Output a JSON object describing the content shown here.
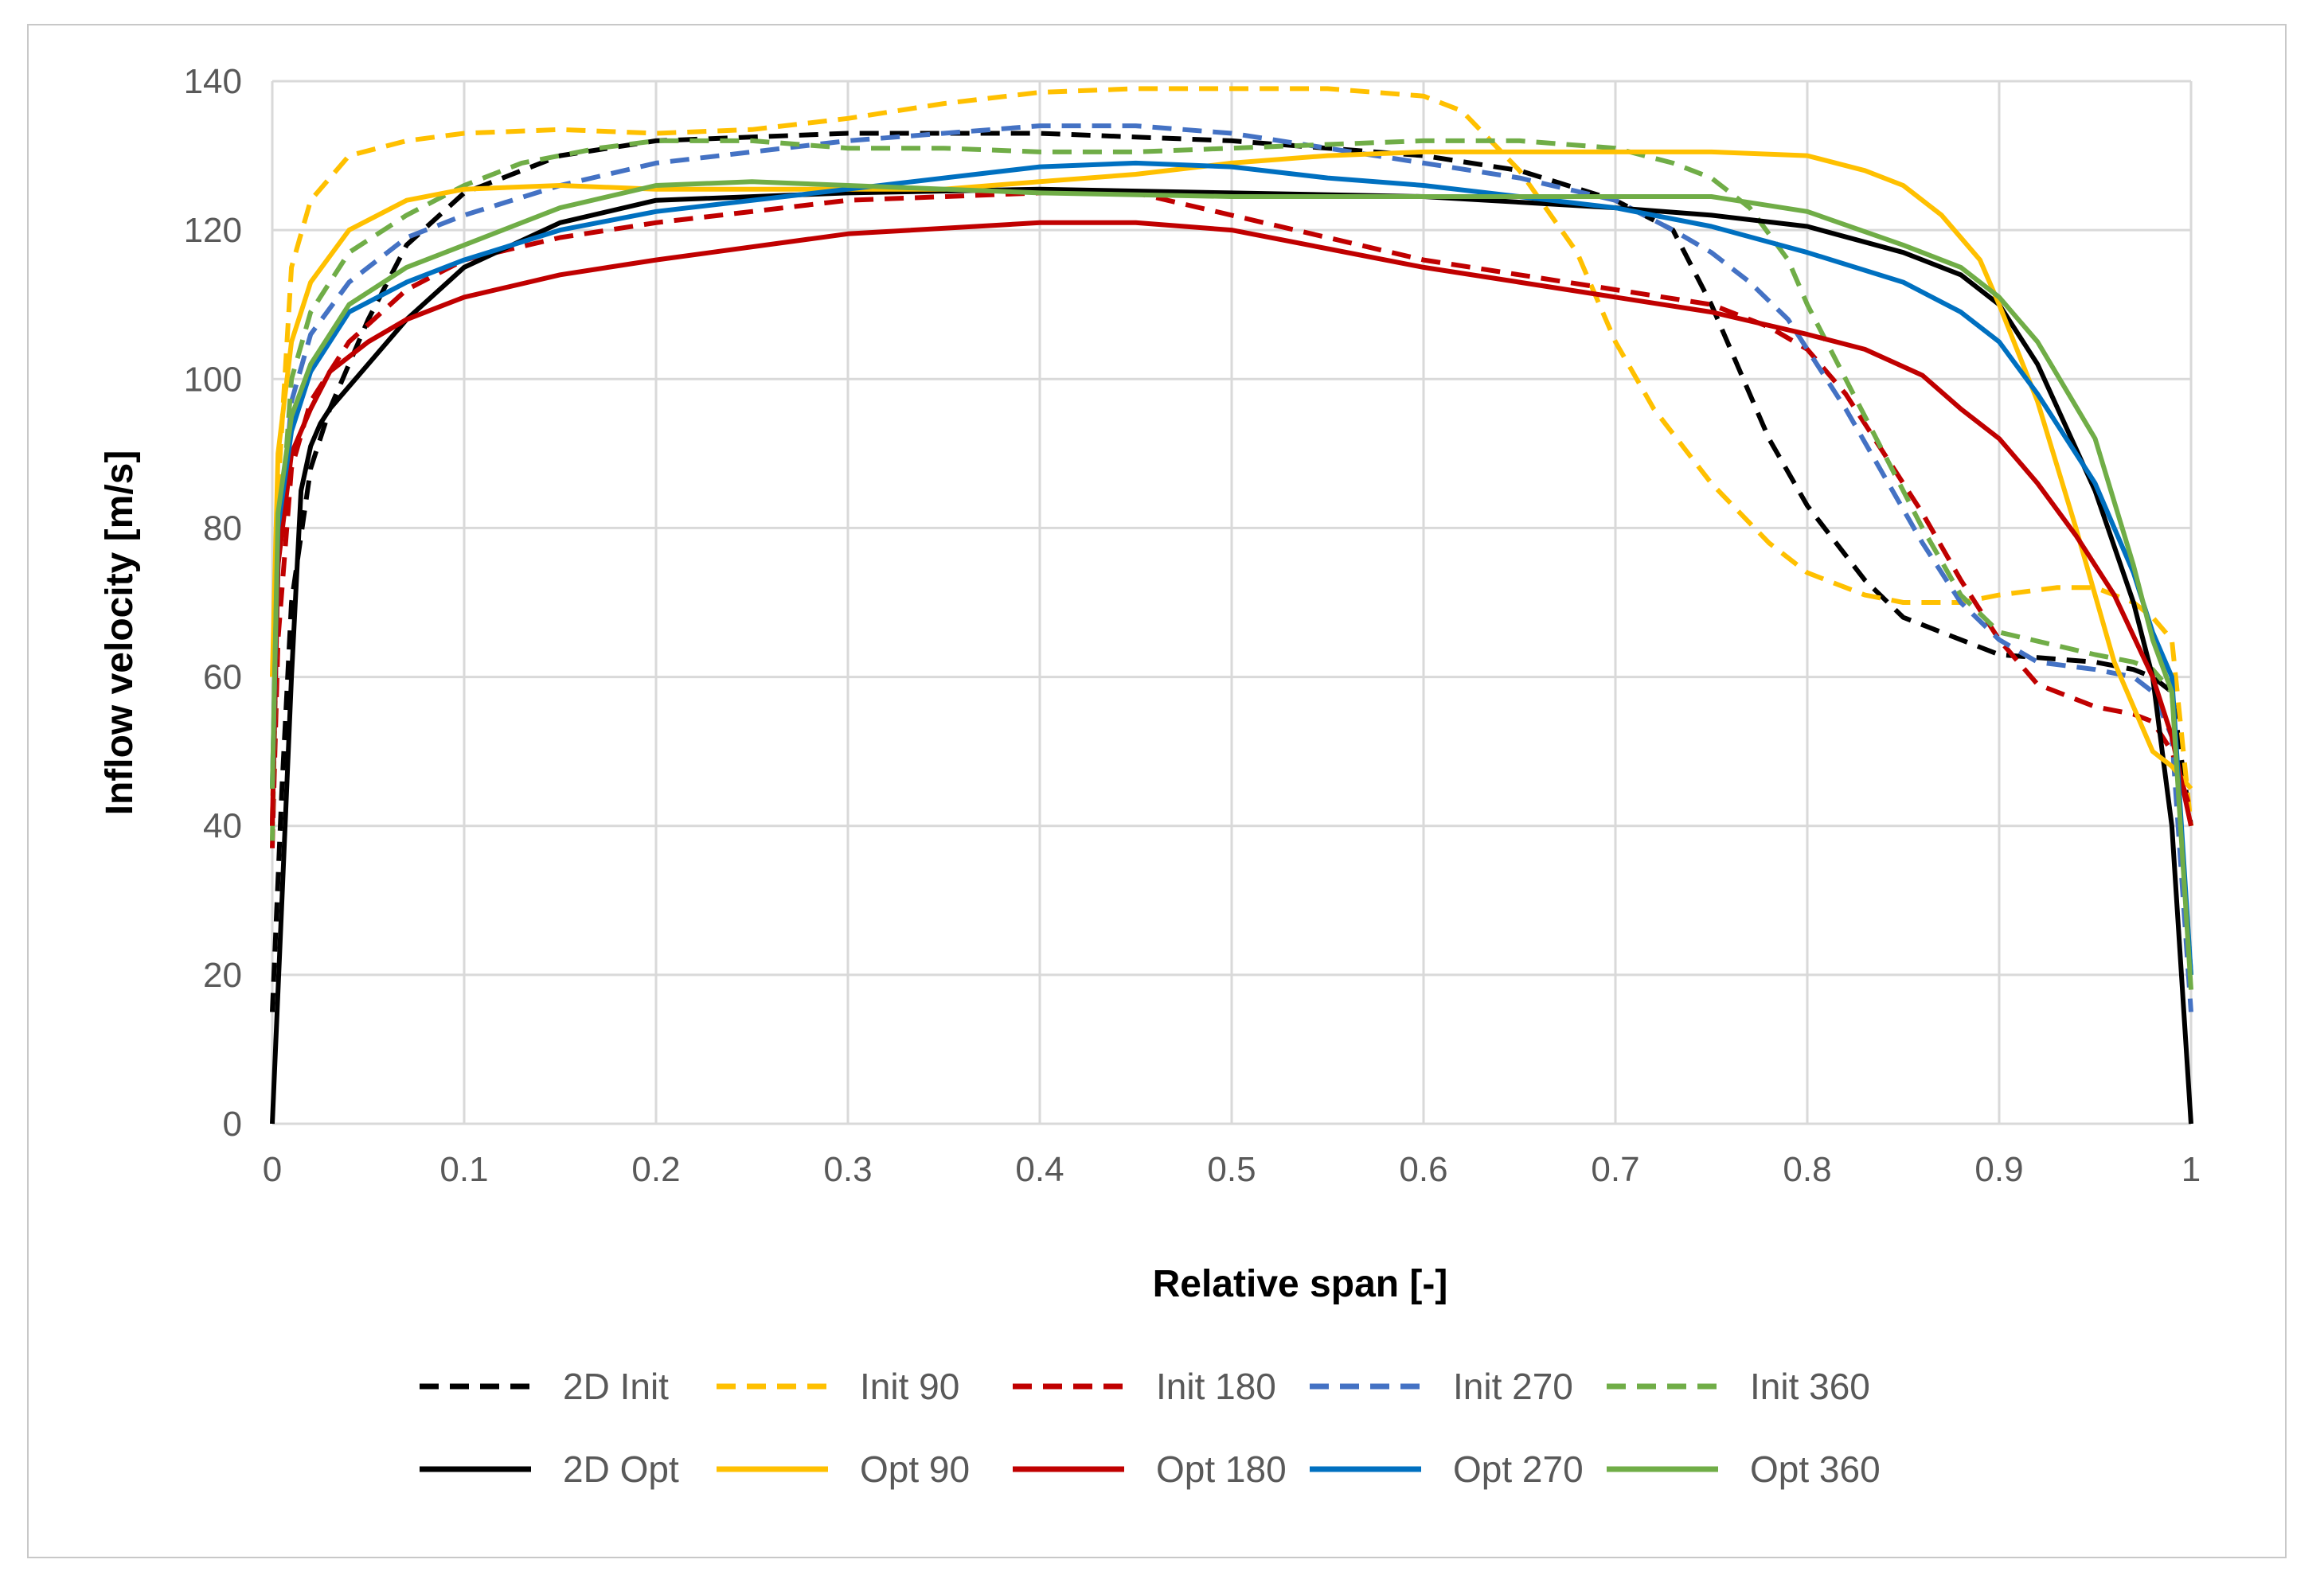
{
  "chart_data": {
    "type": "line",
    "title": "",
    "xlabel": "Relative span  [-]",
    "ylabel": "Inflow velocity [m/s]",
    "xlim": [
      0,
      1
    ],
    "ylim": [
      0,
      140
    ],
    "x_ticks": [
      0,
      0.1,
      0.2,
      0.3,
      0.4,
      0.5,
      0.6,
      0.7,
      0.8,
      0.9,
      1
    ],
    "x_tick_labels": [
      "0",
      "0.1",
      "0.2",
      "0.3",
      "0.4",
      "0.5",
      "0.6",
      "0.7",
      "0.8",
      "0.9",
      "1"
    ],
    "y_ticks": [
      0,
      20,
      40,
      60,
      80,
      100,
      120,
      140
    ],
    "y_tick_labels": [
      "0",
      "20",
      "40",
      "60",
      "80",
      "100",
      "120",
      "140"
    ],
    "grid": true,
    "legend_position": "bottom",
    "series": [
      {
        "name": "2D Init",
        "color": "#000000",
        "dash": "dashed",
        "x": [
          0,
          0.005,
          0.01,
          0.02,
          0.03,
          0.05,
          0.07,
          0.1,
          0.15,
          0.2,
          0.3,
          0.4,
          0.5,
          0.6,
          0.65,
          0.7,
          0.73,
          0.75,
          0.78,
          0.8,
          0.83,
          0.85,
          0.88,
          0.9,
          0.95,
          0.97,
          0.98,
          0.99,
          1.0
        ],
        "y": [
          15,
          45,
          70,
          88,
          96,
          108,
          118,
          125,
          130,
          132,
          133,
          133,
          132,
          130,
          128,
          124,
          120,
          110,
          92,
          83,
          73,
          68,
          65,
          63,
          62,
          61,
          60,
          58,
          40
        ]
      },
      {
        "name": "Init 90",
        "color": "#FFC000",
        "dash": "dashed",
        "x": [
          0,
          0.003,
          0.01,
          0.02,
          0.04,
          0.07,
          0.1,
          0.15,
          0.2,
          0.25,
          0.3,
          0.35,
          0.4,
          0.45,
          0.5,
          0.55,
          0.6,
          0.62,
          0.65,
          0.68,
          0.7,
          0.72,
          0.75,
          0.78,
          0.8,
          0.83,
          0.85,
          0.88,
          0.9,
          0.93,
          0.95,
          0.97,
          0.98,
          0.99,
          1.0
        ],
        "y": [
          40,
          85,
          115,
          124,
          130,
          132,
          133,
          133.5,
          133,
          133.5,
          135,
          137,
          138.5,
          139,
          139,
          139,
          138,
          136,
          128,
          117,
          105,
          96,
          86,
          78,
          74,
          71,
          70,
          70,
          71,
          72,
          72,
          70,
          68,
          65,
          40
        ]
      },
      {
        "name": "Init 180",
        "color": "#C00000",
        "dash": "dashed",
        "x": [
          0,
          0.003,
          0.01,
          0.02,
          0.04,
          0.07,
          0.1,
          0.15,
          0.2,
          0.3,
          0.4,
          0.45,
          0.5,
          0.55,
          0.6,
          0.65,
          0.7,
          0.75,
          0.78,
          0.8,
          0.82,
          0.84,
          0.86,
          0.88,
          0.9,
          0.92,
          0.95,
          0.97,
          0.98,
          0.99,
          1.0
        ],
        "y": [
          37,
          65,
          88,
          97,
          105,
          112,
          116,
          119,
          121,
          124,
          125,
          125,
          122,
          119,
          116,
          114,
          112,
          110,
          107,
          104,
          98,
          90,
          82,
          73,
          65,
          59,
          56,
          55,
          54,
          50,
          42
        ]
      },
      {
        "name": "Init 270",
        "color": "#4472C4",
        "dash": "dashed",
        "x": [
          0,
          0.003,
          0.01,
          0.02,
          0.04,
          0.07,
          0.1,
          0.15,
          0.2,
          0.3,
          0.35,
          0.4,
          0.45,
          0.5,
          0.55,
          0.6,
          0.65,
          0.7,
          0.73,
          0.75,
          0.77,
          0.79,
          0.8,
          0.82,
          0.84,
          0.86,
          0.88,
          0.9,
          0.92,
          0.95,
          0.97,
          0.98,
          0.99,
          1.0
        ],
        "y": [
          40,
          75,
          97,
          106,
          113,
          119,
          122,
          126,
          129,
          132,
          133,
          134,
          134,
          133,
          131,
          129,
          127,
          124,
          120,
          117,
          113,
          108,
          104,
          96,
          87,
          78,
          70,
          65,
          62,
          61,
          60,
          58,
          52,
          15
        ]
      },
      {
        "name": "Init 360",
        "color": "#70AD47",
        "dash": "dashed",
        "x": [
          0,
          0.003,
          0.01,
          0.02,
          0.04,
          0.07,
          0.1,
          0.13,
          0.17,
          0.2,
          0.25,
          0.3,
          0.35,
          0.4,
          0.45,
          0.5,
          0.55,
          0.6,
          0.65,
          0.7,
          0.73,
          0.75,
          0.77,
          0.79,
          0.8,
          0.82,
          0.84,
          0.86,
          0.88,
          0.9,
          0.95,
          0.97,
          0.98,
          0.99,
          1.0
        ],
        "y": [
          38,
          75,
          100,
          109,
          117,
          122,
          126,
          129,
          131,
          132,
          132,
          131,
          131,
          130.5,
          130.5,
          131,
          131.5,
          132,
          132,
          131,
          129,
          127,
          123,
          116,
          110,
          100,
          90,
          80,
          71,
          66,
          63,
          62,
          61,
          58,
          20
        ]
      },
      {
        "name": "2D Opt",
        "color": "#000000",
        "dash": "solid",
        "x": [
          0,
          0.005,
          0.01,
          0.015,
          0.02,
          0.025,
          0.03,
          0.05,
          0.07,
          0.1,
          0.15,
          0.2,
          0.3,
          0.4,
          0.5,
          0.6,
          0.7,
          0.75,
          0.8,
          0.85,
          0.88,
          0.9,
          0.92,
          0.95,
          0.97,
          0.98,
          0.985,
          0.99,
          1.0
        ],
        "y": [
          0,
          30,
          60,
          85,
          91,
          94,
          96,
          102,
          108,
          115,
          121,
          124,
          125,
          125.5,
          125,
          124.5,
          123,
          122,
          120.5,
          117,
          114,
          110,
          102,
          85,
          70,
          60,
          50,
          40,
          0
        ]
      },
      {
        "name": "Opt 90",
        "color": "#FFC000",
        "dash": "solid",
        "x": [
          0,
          0.003,
          0.01,
          0.02,
          0.04,
          0.07,
          0.1,
          0.15,
          0.2,
          0.25,
          0.3,
          0.35,
          0.4,
          0.45,
          0.5,
          0.55,
          0.6,
          0.65,
          0.7,
          0.75,
          0.8,
          0.83,
          0.85,
          0.87,
          0.88,
          0.89,
          0.9,
          0.92,
          0.94,
          0.96,
          0.98,
          0.99,
          1.0
        ],
        "y": [
          60,
          90,
          105,
          113,
          120,
          124,
          125.5,
          126,
          125.5,
          125.5,
          125.5,
          125.5,
          126.5,
          127.5,
          129,
          130,
          130.5,
          130.5,
          130.5,
          130.5,
          130,
          128,
          126,
          122,
          119,
          116,
          110,
          97,
          80,
          62,
          50,
          48,
          45
        ]
      },
      {
        "name": "Opt 180",
        "color": "#C00000",
        "dash": "solid",
        "x": [
          0,
          0.003,
          0.01,
          0.02,
          0.03,
          0.05,
          0.07,
          0.1,
          0.15,
          0.2,
          0.3,
          0.4,
          0.45,
          0.5,
          0.55,
          0.6,
          0.65,
          0.7,
          0.75,
          0.8,
          0.83,
          0.86,
          0.88,
          0.9,
          0.92,
          0.94,
          0.96,
          0.98,
          0.99,
          1.0
        ],
        "y": [
          40,
          75,
          90,
          96,
          101,
          105,
          108,
          111,
          114,
          116,
          119.5,
          121,
          121,
          120,
          117.5,
          115,
          113,
          111,
          109,
          106,
          104,
          100.5,
          96,
          92,
          86,
          79,
          71,
          60,
          52,
          40
        ]
      },
      {
        "name": "Opt 270",
        "color": "#0070C0",
        "dash": "solid",
        "x": [
          0,
          0.003,
          0.01,
          0.02,
          0.04,
          0.07,
          0.1,
          0.15,
          0.2,
          0.3,
          0.4,
          0.45,
          0.5,
          0.55,
          0.6,
          0.65,
          0.7,
          0.75,
          0.8,
          0.85,
          0.88,
          0.9,
          0.92,
          0.95,
          0.97,
          0.98,
          0.99,
          1.0
        ],
        "y": [
          45,
          80,
          93,
          101,
          109,
          113,
          116,
          120,
          122.5,
          125.5,
          128.5,
          129,
          128.5,
          127,
          126,
          124.5,
          123,
          120.5,
          117,
          113,
          109,
          105,
          98,
          86,
          74,
          66,
          60,
          20
        ]
      },
      {
        "name": "Opt 360",
        "color": "#70AD47",
        "dash": "solid",
        "x": [
          0,
          0.003,
          0.01,
          0.02,
          0.04,
          0.07,
          0.1,
          0.15,
          0.2,
          0.25,
          0.3,
          0.4,
          0.5,
          0.6,
          0.7,
          0.75,
          0.8,
          0.85,
          0.88,
          0.9,
          0.92,
          0.95,
          0.97,
          0.98,
          0.99,
          1.0
        ],
        "y": [
          45,
          82,
          95,
          102,
          110,
          115,
          118,
          123,
          126,
          126.5,
          126,
          125,
          124.5,
          124.5,
          124.5,
          124.5,
          122.5,
          118,
          115,
          111,
          105,
          92,
          75,
          65,
          58,
          18
        ]
      }
    ]
  }
}
